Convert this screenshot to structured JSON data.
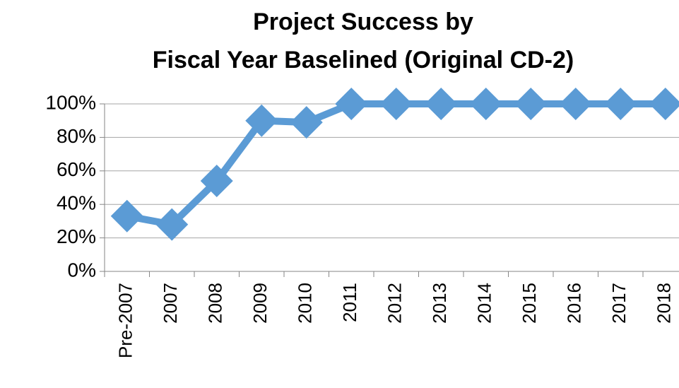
{
  "chart_data": {
    "type": "line",
    "title": [
      "Project Success by",
      "Fiscal Year Baselined (Original CD-2)"
    ],
    "categories": [
      "Pre-2007",
      "2007",
      "2008",
      "2009",
      "2010",
      "2011",
      "2012",
      "2013",
      "2014",
      "2015",
      "2016",
      "2017",
      "2018"
    ],
    "series": [
      {
        "color": "#5b9bd5",
        "values": [
          33,
          28,
          54,
          90,
          89,
          100,
          100,
          100,
          100,
          100,
          100,
          100,
          100
        ]
      }
    ],
    "ylim": [
      0,
      100
    ],
    "yticks": [
      {
        "value": 0,
        "label": "0%"
      },
      {
        "value": 20,
        "label": "20%"
      },
      {
        "value": 40,
        "label": "40%"
      },
      {
        "value": 60,
        "label": "60%"
      },
      {
        "value": 80,
        "label": "80%"
      },
      {
        "value": 100,
        "label": "100%"
      }
    ],
    "grid": true
  }
}
